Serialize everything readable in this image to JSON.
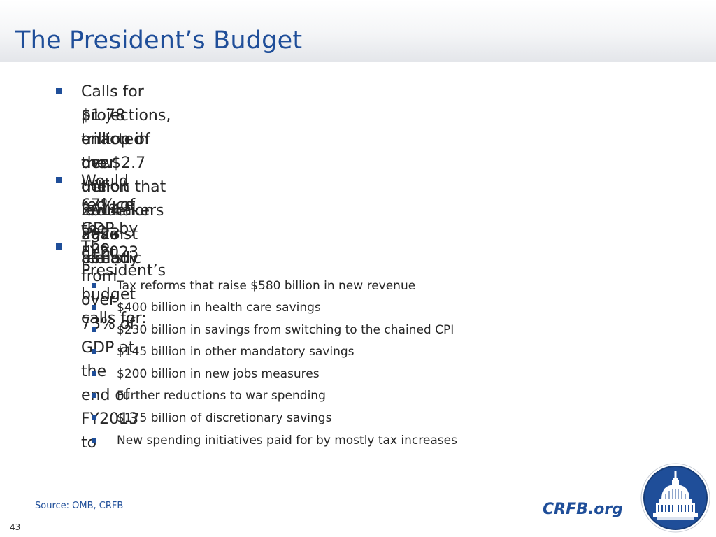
{
  "slide": {
    "title": "The President’s Budget",
    "page_number": "43",
    "source": "Source: OMB, CRFB",
    "brand": "CRFB.org"
  },
  "bullets": [
    {
      "lines": [
        "Calls for $1.78 trillion in new deficit reduction against realistic",
        "projections, on top of the $2.7 trillion that lawmakers have already",
        "enacted over the 2014-2023 period"
      ]
    },
    {
      "lines": [
        "Would reduce the debt from over 73% of GDP at the end of FY2013 to",
        "67% of GDP by FY2023"
      ]
    },
    {
      "lines": [
        "The President’s budget calls for:"
      ]
    }
  ],
  "sub_bullets": [
    "Tax reforms that raise $580 billion in new revenue",
    "$400 billion in health care savings",
    "$230 billion in savings from switching to the chained CPI",
    "$145 billion in other mandatory savings",
    "$200 billion in new jobs measures",
    "Further reductions to war spending",
    "$175 billion of discretionary savings",
    "New spending initiatives paid for by mostly tax increases"
  ],
  "colors": {
    "accent": "#1f4e99",
    "text": "#262626",
    "seal_bg": "#1f4e99"
  },
  "icons": {
    "bullet": "square-bullet-icon",
    "seal": "capitol-dome-seal-icon"
  }
}
